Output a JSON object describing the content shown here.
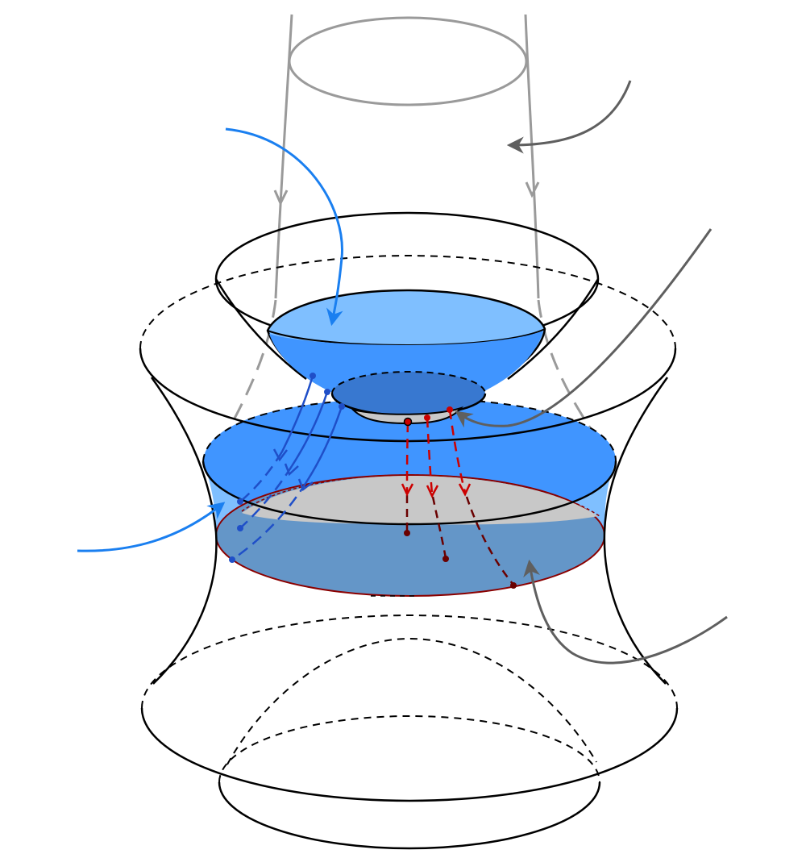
{
  "colors": {
    "outline": "#000000",
    "grey_curve": "#9a9a9a",
    "grey_arrow": "#5f5f5f",
    "blue_arrow": "#1a7ff0",
    "light_blue_fill": "#7fbfff",
    "mid_blue_fill": "#4095ff",
    "dark_blue_fill": "#3878d0",
    "steel_blue_fill": "#6496c8",
    "grey_disk_fill": "#c8c8c8",
    "blue_flow": "#1f4fc8",
    "red_flow": "#cc0000",
    "dark_red": "#6a0000"
  },
  "labels": []
}
